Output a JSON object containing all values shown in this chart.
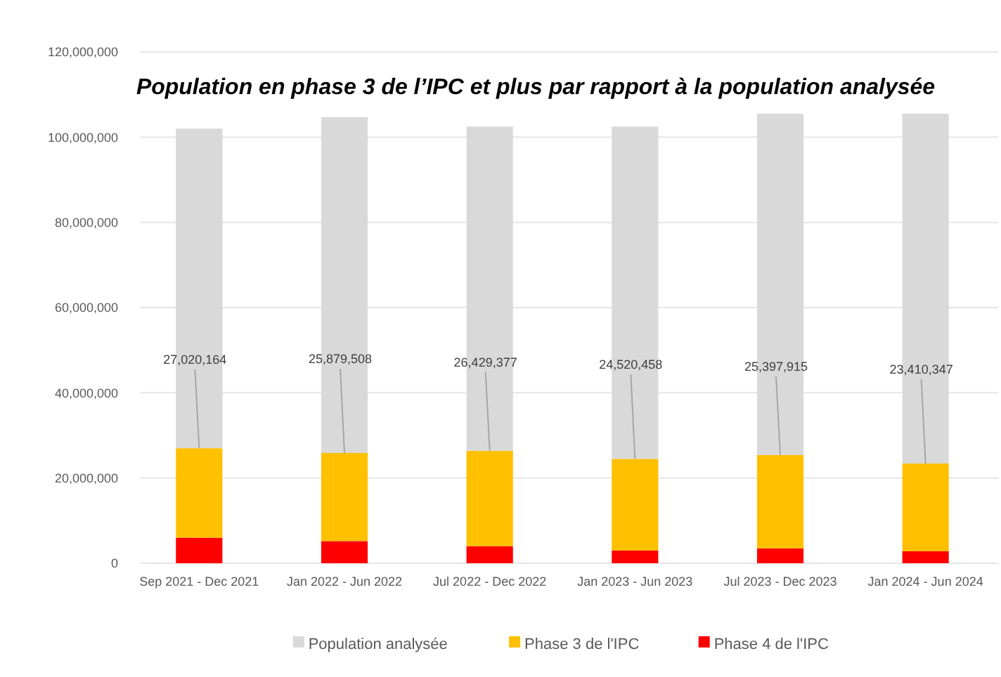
{
  "chart_data": {
    "type": "bar",
    "title": "Population en phase 3 de l’IPC et plus par rapport à la population analysée",
    "categories": [
      "Sep 2021 - Dec 2021",
      "Jan 2022 - Jun 2022",
      "Jul 2022 - Dec 2022",
      "Jan 2023 - Jun 2023",
      "Jul 2023 - Dec 2023",
      "Jan 2024 - Jun 2024"
    ],
    "stacked": true,
    "series": [
      {
        "name": "Phase 4 de l'IPC",
        "color": "#ff0000",
        "values": [
          6000000,
          5200000,
          4000000,
          3000000,
          3500000,
          2800000
        ]
      },
      {
        "name": "Phase 3 de l'IPC",
        "color": "#ffc000",
        "values": [
          21000000,
          20700000,
          22400000,
          21500000,
          21900000,
          20600000
        ]
      },
      {
        "name": "Population analysée",
        "color": "#d9d9d9",
        "values": [
          75000000,
          78800000,
          76100000,
          78000000,
          80100000,
          82100000
        ]
      }
    ],
    "ylim": [
      0,
      120000000
    ],
    "yticks": [
      {
        "value": 0,
        "label": "0"
      },
      {
        "value": 20000000,
        "label": "20,000,000"
      },
      {
        "value": 40000000,
        "label": "40,000,000"
      },
      {
        "value": 60000000,
        "label": "60,000,000"
      },
      {
        "value": 80000000,
        "label": "80,000,000"
      },
      {
        "value": 100000000,
        "label": "100,000,000"
      },
      {
        "value": 120000000,
        "label": "120,000,000"
      }
    ],
    "grid": "y",
    "legend": "bottom",
    "annotations": [
      {
        "text": "27,020,164",
        "x": "Sep 2021 - Dec 2021",
        "y": 27020164
      },
      {
        "text": "25,879,508",
        "x": "Jan 2022 - Jun 2022",
        "y": 25879508
      },
      {
        "text": "26,429,377",
        "x": "Jul 2022 - Dec 2022",
        "y": 26429377
      },
      {
        "text": "24,520,458",
        "x": "Jan 2023 - Jun 2023",
        "y": 24520458
      },
      {
        "text": "25,397,915",
        "x": "Jul 2023 - Dec 2023",
        "y": 25397915
      },
      {
        "text": "23,410,347",
        "x": "Jan 2024 - Jun 2024",
        "y": 23410347
      }
    ]
  }
}
